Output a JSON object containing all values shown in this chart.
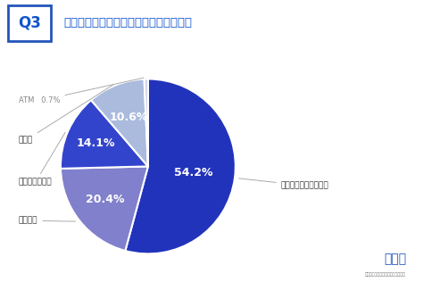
{
  "title": "自動車税の支払いはどこで行いますか？",
  "q_label": "Q3",
  "slices": [
    {
      "label": "コンビニエンスストア",
      "value": 54.2,
      "color": "#2233bb"
    },
    {
      "label": "銀行窓口",
      "value": 20.4,
      "color": "#8080cc"
    },
    {
      "label": "インターネット",
      "value": 14.1,
      "color": "#3344cc"
    },
    {
      "label": "その他",
      "value": 10.6,
      "color": "#aabbdd"
    },
    {
      "label": "ATM",
      "value": 0.7,
      "color": "#ccd0e8"
    }
  ],
  "bg_color": "#ffffff",
  "title_color": "#1155cc",
  "q_box_border_color": "#2255bb",
  "label_color": "#333333",
  "atm_label_color": "#888888",
  "pct_label_color": "#ffffff",
  "start_angle": 90,
  "logo_text": "旧車王",
  "logo_sub": "旧車売買は旧車王にお任せください"
}
